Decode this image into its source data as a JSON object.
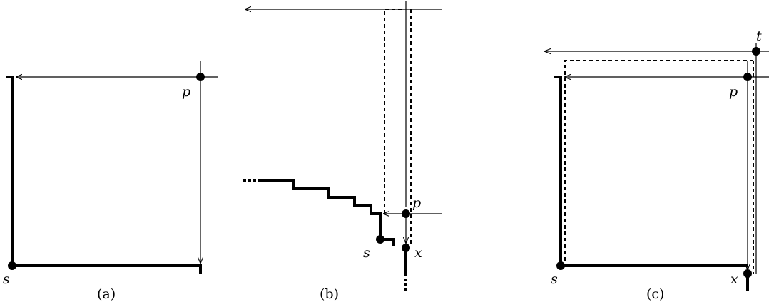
{
  "panels": {
    "a": {
      "caption": "(a)",
      "labels": {
        "s": "s",
        "p": "p"
      }
    },
    "b": {
      "caption": "(b)",
      "labels": {
        "s": "s",
        "p": "p",
        "x": "x"
      }
    },
    "c": {
      "caption": "(c)",
      "labels": {
        "s": "s",
        "p": "p",
        "x": "x",
        "t": "t"
      }
    }
  }
}
